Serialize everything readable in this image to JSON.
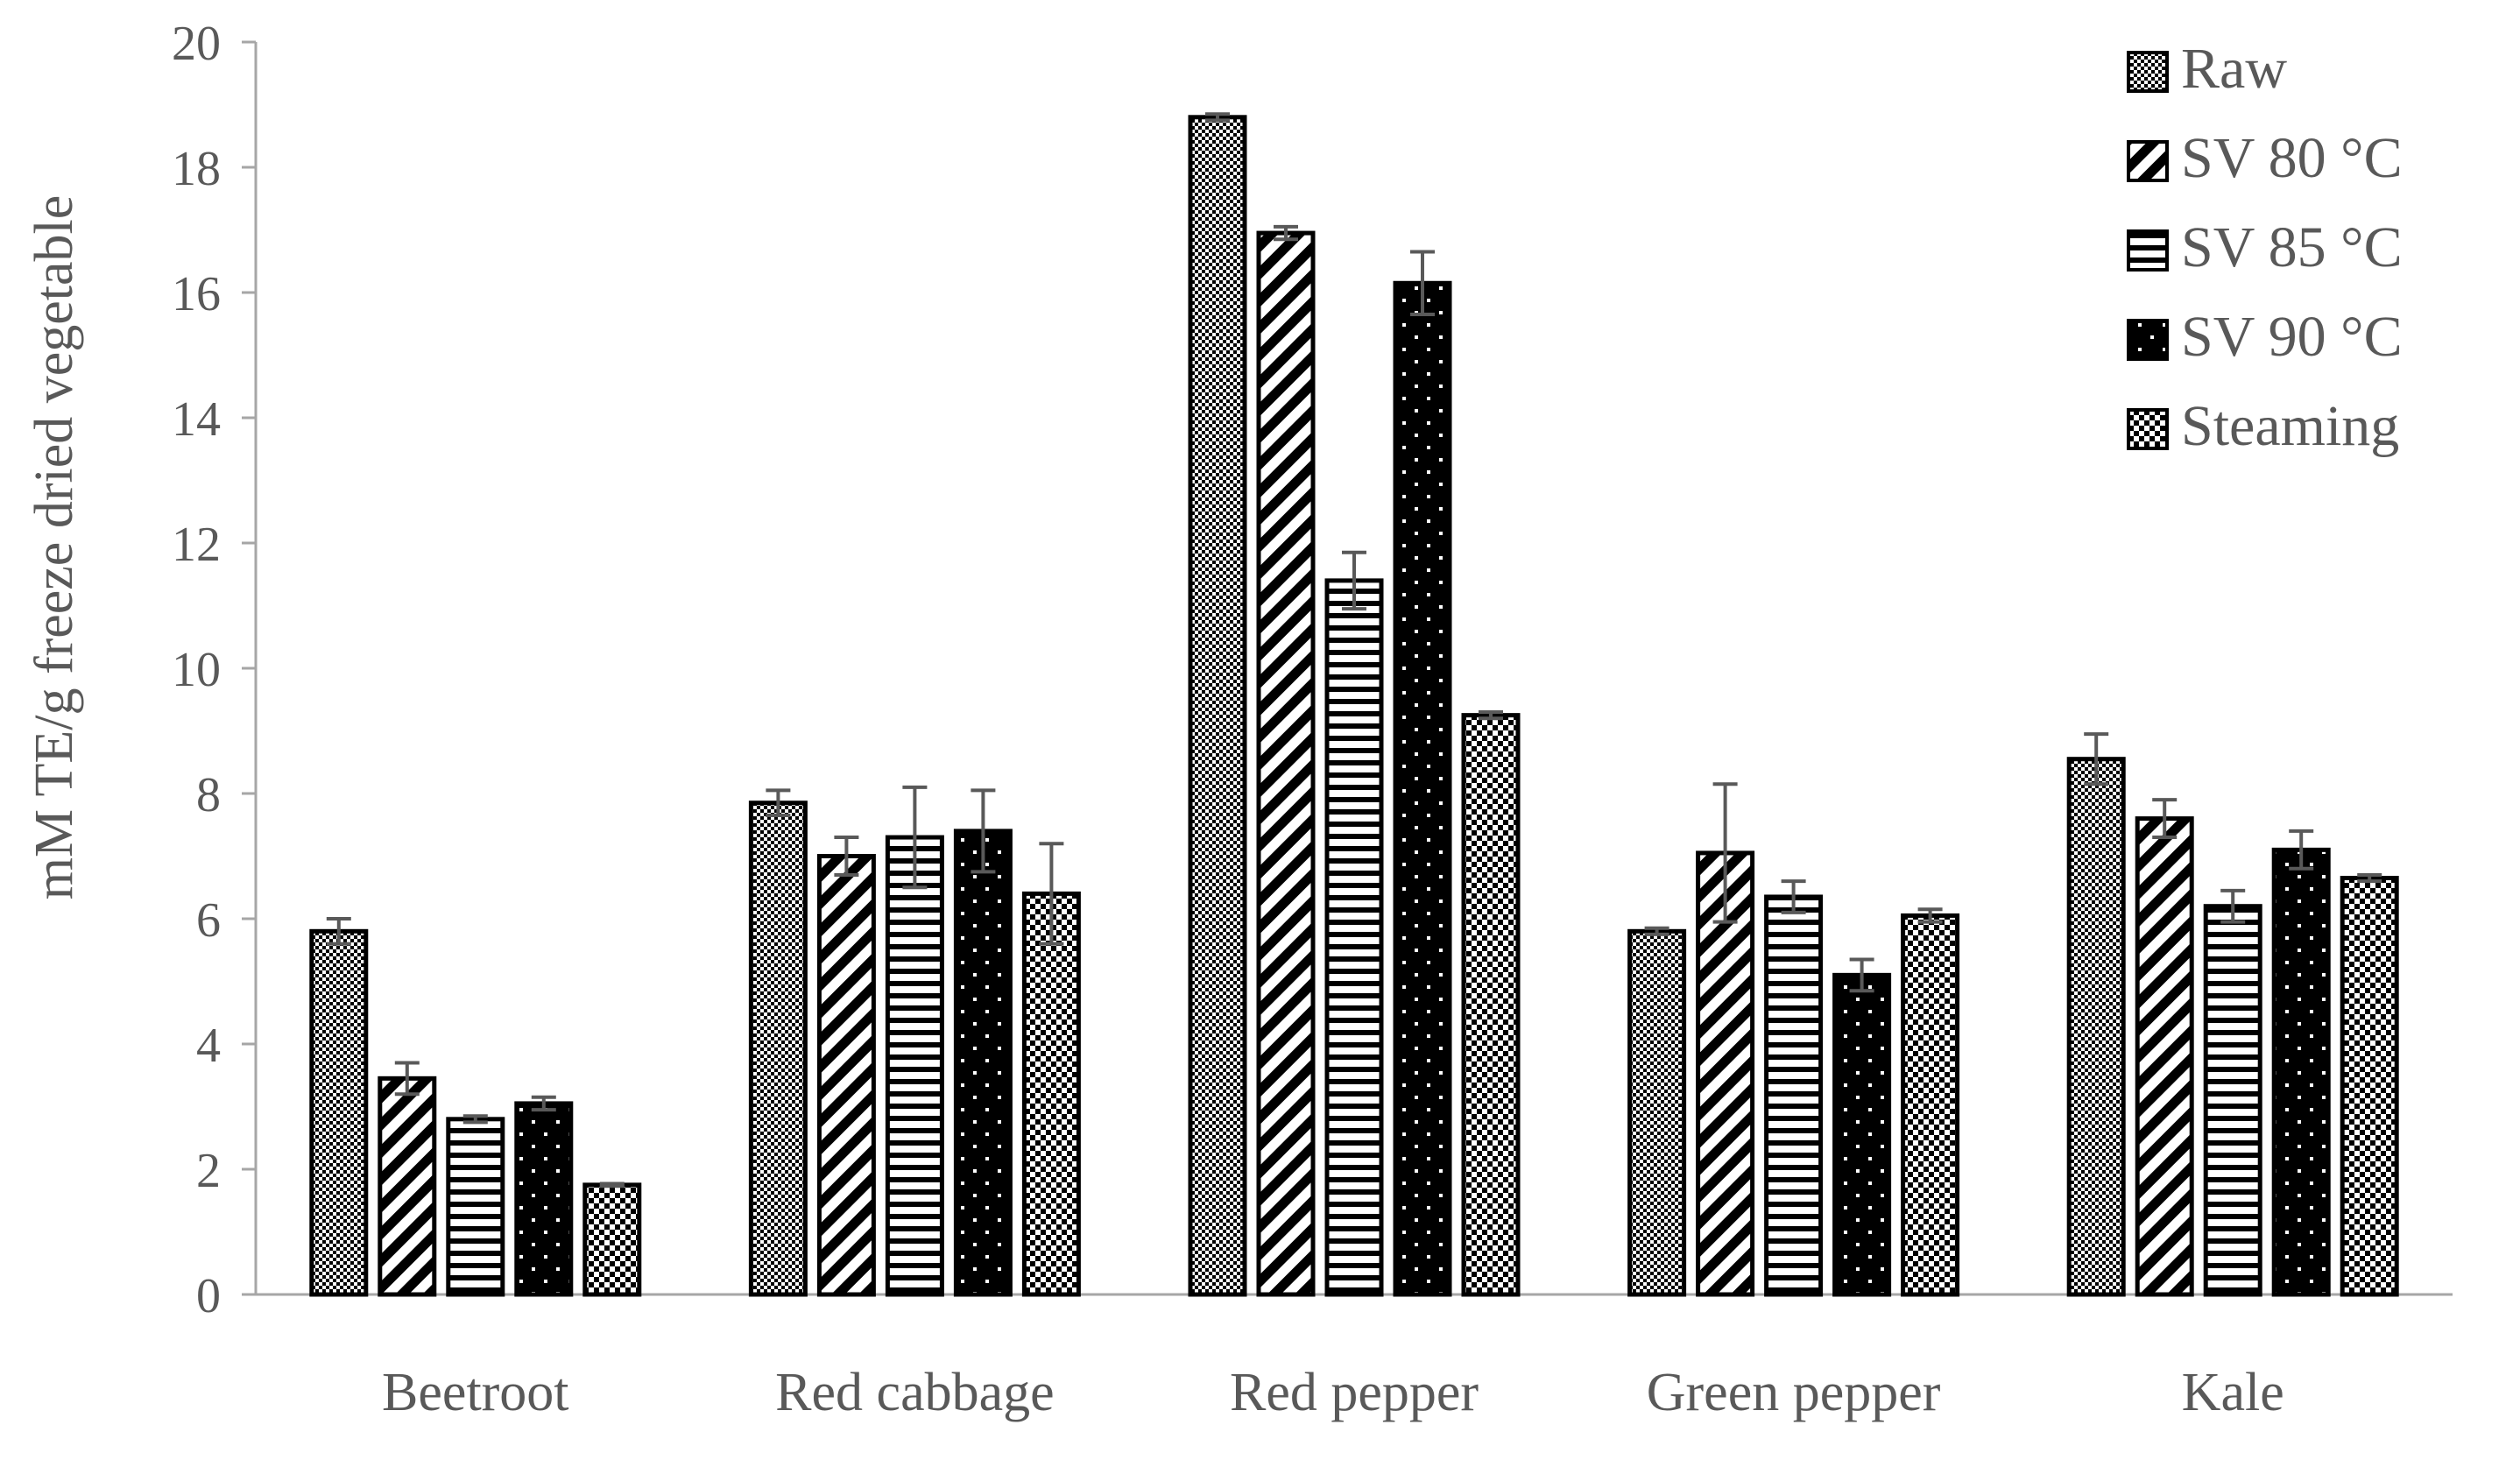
{
  "chart_data": {
    "type": "bar",
    "title": "",
    "xlabel": "",
    "ylabel": "mM TE/g freeze dried vegetable",
    "ylim": [
      0,
      20
    ],
    "yticks": [
      0,
      2,
      4,
      6,
      8,
      10,
      12,
      14,
      16,
      18,
      20
    ],
    "grid": false,
    "legend_position": "top-right",
    "categories": [
      "Beetroot",
      "Red cabbage",
      "Red pepper",
      "Green pepper",
      "Kale"
    ],
    "series": [
      {
        "name": "Raw",
        "pattern": "checker",
        "values": [
          5.8,
          7.85,
          18.8,
          5.8,
          8.55
        ],
        "errors": [
          0.2,
          0.2,
          0.05,
          0.05,
          0.4
        ]
      },
      {
        "name": "SV 80 °C",
        "pattern": "diagonal",
        "values": [
          3.45,
          7.0,
          16.95,
          7.05,
          7.6
        ],
        "errors": [
          0.25,
          0.3,
          0.1,
          1.1,
          0.3
        ]
      },
      {
        "name": "SV 85 °C",
        "pattern": "horizontal",
        "values": [
          2.8,
          7.3,
          11.4,
          6.35,
          6.2
        ],
        "errors": [
          0.05,
          0.8,
          0.45,
          0.25,
          0.25
        ]
      },
      {
        "name": "SV 90 °C",
        "pattern": "dots-on-black",
        "values": [
          3.05,
          7.4,
          16.15,
          5.1,
          7.1
        ],
        "errors": [
          0.1,
          0.65,
          0.5,
          0.25,
          0.3
        ]
      },
      {
        "name": "Steaming",
        "pattern": "checker-large",
        "values": [
          1.75,
          6.4,
          9.25,
          6.05,
          6.65
        ],
        "errors": [
          0.02,
          0.8,
          0.05,
          0.1,
          0.05
        ]
      }
    ],
    "colors": {
      "axis": "#a6a6a6",
      "text": "#595959",
      "bar_outline": "#000000",
      "error_bar": "#595959"
    }
  }
}
